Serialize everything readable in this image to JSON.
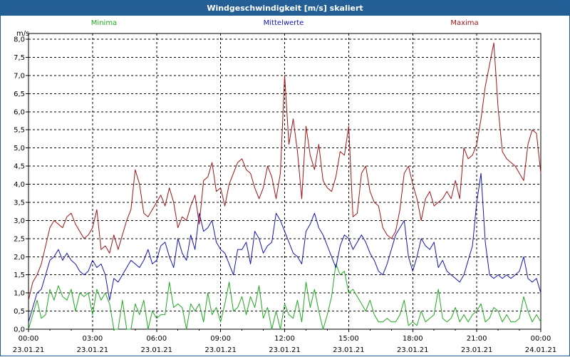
{
  "window": {
    "title": "Windgeschwindigkeit [m/s] skaliert"
  },
  "colors": {
    "min": "#1fa91f",
    "mean": "#1414b4",
    "max": "#a01414",
    "title_bar": "#235f94"
  },
  "chart_data": {
    "type": "line",
    "title": "Windgeschwindigkeit [m/s] skaliert",
    "ylabel": "m/s",
    "ylim": [
      0,
      8
    ],
    "yticks": [
      "0,0",
      "0,5",
      "1,0",
      "1,5",
      "2,0",
      "2,5",
      "3,0",
      "3,5",
      "4,0",
      "4,5",
      "5,0",
      "5,5",
      "6,0",
      "6,5",
      "7,0",
      "7,5",
      "8,0"
    ],
    "xlim": [
      "23.01.21 00:00",
      "24.01.21 00:00"
    ],
    "xticks": [
      {
        "time": "00:00",
        "date": "23.01.21"
      },
      {
        "time": "03:00",
        "date": "23.01.21"
      },
      {
        "time": "06:00",
        "date": "23.01.21"
      },
      {
        "time": "09:00",
        "date": "23.01.21"
      },
      {
        "time": "12:00",
        "date": "23.01.21"
      },
      {
        "time": "15:00",
        "date": "23.01.21"
      },
      {
        "time": "18:00",
        "date": "23.01.21"
      },
      {
        "time": "21:00",
        "date": "23.01.21"
      },
      {
        "time": "00:00",
        "date": "24.01.21"
      }
    ],
    "grid": true,
    "legend_position": "top",
    "x_unit": "hours",
    "series": [
      {
        "name": "Minima",
        "color": "#1fa91f",
        "x": [
          0,
          0.2,
          0.4,
          0.6,
          0.8,
          1.0,
          1.2,
          1.4,
          1.6,
          1.8,
          2.0,
          2.2,
          2.4,
          2.6,
          2.8,
          3.0,
          3.2,
          3.4,
          3.6,
          3.8,
          4.0,
          4.2,
          4.4,
          4.6,
          4.8,
          5.0,
          5.2,
          5.4,
          5.6,
          5.8,
          6.0,
          6.2,
          6.4,
          6.6,
          6.8,
          7.0,
          7.2,
          7.4,
          7.6,
          7.8,
          8.0,
          8.2,
          8.4,
          8.6,
          8.8,
          9.0,
          9.2,
          9.4,
          9.6,
          9.8,
          10.0,
          10.2,
          10.4,
          10.6,
          10.8,
          11.0,
          11.2,
          11.4,
          11.6,
          11.8,
          12.0,
          12.2,
          12.4,
          12.6,
          12.8,
          13.0,
          13.2,
          13.4,
          13.6,
          13.8,
          14.0,
          14.2,
          14.4,
          14.6,
          14.8,
          15.0,
          15.2,
          15.4,
          15.6,
          15.8,
          16.0,
          16.2,
          16.4,
          16.6,
          16.8,
          17.0,
          17.2,
          17.4,
          17.6,
          17.8,
          18.0,
          18.2,
          18.4,
          18.6,
          18.8,
          19.0,
          19.2,
          19.4,
          19.6,
          19.8,
          20.0,
          20.2,
          20.4,
          20.6,
          20.8,
          21.0,
          21.2,
          21.4,
          21.6,
          21.8,
          22.0,
          22.2,
          22.4,
          22.6,
          22.8,
          23.0,
          23.2,
          23.4,
          23.6,
          23.8,
          24.0
        ],
        "y": [
          0.0,
          0.4,
          0.8,
          0.3,
          0.4,
          1.1,
          0.8,
          1.2,
          0.9,
          0.8,
          1.1,
          0.5,
          1.0,
          0.9,
          1.0,
          0.4,
          1.1,
          0.8,
          1.0,
          0.7,
          0.0,
          0.0,
          0.8,
          0.0,
          0.0,
          0.7,
          0.4,
          0.8,
          0.0,
          0.5,
          0.3,
          0.4,
          0.4,
          1.3,
          0.6,
          0.7,
          0.6,
          0.0,
          0.7,
          0.5,
          0.7,
          0.2,
          1.0,
          0.4,
          0.6,
          0.2,
          0.7,
          1.3,
          0.5,
          0.6,
          0.9,
          0.4,
          0.9,
          0.6,
          1.2,
          0.3,
          0.6,
          0.0,
          0.5,
          0.0,
          0.7,
          0.4,
          0.3,
          0.8,
          0.2,
          1.3,
          0.6,
          1.1,
          0.5,
          0.0,
          0.4,
          0.9,
          1.8,
          1.5,
          1.6,
          1.0,
          1.1,
          0.9,
          0.7,
          0.5,
          0.8,
          0.4,
          0.2,
          0.2,
          0.3,
          0.2,
          0.2,
          0.4,
          0.8,
          0.1,
          0.2,
          0.1,
          0.5,
          0.2,
          0.3,
          0.4,
          1.1,
          0.3,
          0.2,
          0.3,
          0.6,
          0.2,
          0.4,
          0.2,
          0.4,
          0.5,
          0.7,
          0.2,
          0.3,
          0.6,
          0.5,
          0.2,
          0.4,
          0.2,
          0.2,
          0.3,
          0.9,
          0.5,
          0.2,
          0.4,
          0.2
        ],
        "x_hours": true
      },
      {
        "name": "Mittelwerte",
        "color": "#1414b4",
        "x": [
          0,
          0.2,
          0.4,
          0.6,
          0.8,
          1.0,
          1.2,
          1.4,
          1.6,
          1.8,
          2.0,
          2.2,
          2.4,
          2.6,
          2.8,
          3.0,
          3.2,
          3.4,
          3.6,
          3.8,
          4.0,
          4.2,
          4.4,
          4.6,
          4.8,
          5.0,
          5.2,
          5.4,
          5.6,
          5.8,
          6.0,
          6.2,
          6.4,
          6.6,
          6.8,
          7.0,
          7.2,
          7.4,
          7.6,
          7.8,
          8.0,
          8.2,
          8.4,
          8.6,
          8.8,
          9.0,
          9.2,
          9.4,
          9.6,
          9.8,
          10.0,
          10.2,
          10.4,
          10.6,
          10.8,
          11.0,
          11.2,
          11.4,
          11.6,
          11.8,
          12.0,
          12.2,
          12.4,
          12.6,
          12.8,
          13.0,
          13.2,
          13.4,
          13.6,
          13.8,
          14.0,
          14.2,
          14.4,
          14.6,
          14.8,
          15.0,
          15.2,
          15.4,
          15.6,
          15.8,
          16.0,
          16.2,
          16.4,
          16.6,
          16.8,
          17.0,
          17.2,
          17.4,
          17.6,
          17.8,
          18.0,
          18.2,
          18.4,
          18.6,
          18.8,
          19.0,
          19.2,
          19.4,
          19.6,
          19.8,
          20.0,
          20.2,
          20.4,
          20.6,
          20.8,
          21.0,
          21.2,
          21.4,
          21.6,
          21.8,
          22.0,
          22.2,
          22.4,
          22.6,
          22.8,
          23.0,
          23.2,
          23.4,
          23.6,
          23.8,
          24.0
        ],
        "y": [
          0.2,
          0.6,
          1.0,
          1.1,
          1.5,
          1.9,
          2.0,
          2.2,
          1.9,
          2.1,
          1.9,
          1.8,
          1.6,
          1.5,
          1.6,
          1.9,
          1.7,
          1.8,
          1.5,
          0.8,
          1.4,
          1.3,
          1.5,
          1.7,
          1.9,
          1.8,
          1.7,
          1.9,
          2.2,
          1.8,
          1.9,
          2.3,
          2.4,
          2.0,
          1.7,
          2.5,
          2.1,
          1.9,
          2.6,
          2.2,
          3.2,
          2.7,
          2.8,
          3.0,
          2.4,
          2.2,
          2.1,
          1.8,
          1.5,
          2.2,
          2.2,
          2.4,
          1.8,
          2.7,
          2.5,
          2.1,
          2.3,
          2.4,
          3.2,
          3.0,
          2.7,
          2.4,
          2.1,
          2.0,
          1.8,
          2.7,
          2.9,
          3.2,
          2.8,
          2.6,
          2.3,
          2.0,
          1.7,
          2.3,
          2.6,
          2.5,
          2.2,
          2.4,
          2.6,
          2.4,
          2.1,
          1.9,
          1.6,
          1.5,
          1.8,
          2.2,
          2.6,
          2.8,
          3.0,
          2.0,
          1.6,
          2.0,
          2.5,
          2.3,
          2.2,
          2.4,
          1.7,
          1.9,
          1.6,
          1.5,
          1.4,
          1.3,
          1.5,
          1.9,
          2.3,
          3.5,
          4.3,
          2.4,
          1.5,
          1.4,
          1.5,
          1.4,
          1.5,
          1.4,
          1.5,
          1.6,
          2.0,
          1.4,
          1.3,
          1.4,
          1.0
        ],
        "x_hours": true
      },
      {
        "name": "Maxima",
        "color": "#a01414",
        "x": [
          0,
          0.2,
          0.4,
          0.6,
          0.8,
          1.0,
          1.2,
          1.4,
          1.6,
          1.8,
          2.0,
          2.2,
          2.4,
          2.6,
          2.8,
          3.0,
          3.2,
          3.4,
          3.6,
          3.8,
          4.0,
          4.2,
          4.4,
          4.6,
          4.8,
          5.0,
          5.2,
          5.4,
          5.6,
          5.8,
          6.0,
          6.2,
          6.4,
          6.6,
          6.8,
          7.0,
          7.2,
          7.4,
          7.6,
          7.8,
          8.0,
          8.2,
          8.4,
          8.6,
          8.8,
          9.0,
          9.2,
          9.4,
          9.6,
          9.8,
          10.0,
          10.2,
          10.4,
          10.6,
          10.8,
          11.0,
          11.2,
          11.4,
          11.6,
          11.8,
          12.0,
          12.2,
          12.4,
          12.6,
          12.8,
          13.0,
          13.2,
          13.4,
          13.6,
          13.8,
          14.0,
          14.2,
          14.4,
          14.6,
          14.8,
          15.0,
          15.2,
          15.4,
          15.6,
          15.8,
          16.0,
          16.2,
          16.4,
          16.6,
          16.8,
          17.0,
          17.2,
          17.4,
          17.6,
          17.8,
          18.0,
          18.2,
          18.4,
          18.6,
          18.8,
          19.0,
          19.2,
          19.4,
          19.6,
          19.8,
          20.0,
          20.2,
          20.4,
          20.6,
          20.8,
          21.0,
          21.2,
          21.4,
          21.6,
          21.8,
          22.0,
          22.2,
          22.4,
          22.6,
          22.8,
          23.0,
          23.2,
          23.4,
          23.6,
          23.8,
          24.0
        ],
        "y": [
          0.8,
          1.3,
          1.5,
          1.8,
          2.3,
          2.8,
          3.0,
          2.9,
          2.8,
          3.1,
          3.2,
          2.9,
          2.7,
          2.5,
          2.6,
          2.8,
          3.3,
          2.2,
          2.3,
          2.1,
          2.6,
          2.2,
          2.6,
          3.0,
          3.3,
          4.4,
          4.0,
          3.2,
          3.1,
          3.3,
          3.5,
          3.7,
          3.4,
          3.9,
          3.5,
          2.8,
          3.1,
          3.0,
          3.4,
          3.7,
          2.9,
          4.1,
          4.2,
          4.6,
          3.8,
          3.9,
          3.4,
          4.0,
          4.3,
          4.6,
          4.7,
          4.4,
          4.3,
          3.9,
          3.6,
          3.9,
          4.5,
          4.2,
          3.6,
          4.3,
          7.0,
          5.1,
          5.8,
          4.9,
          3.6,
          5.6,
          4.8,
          4.4,
          5.1,
          4.1,
          3.9,
          3.8,
          4.2,
          4.9,
          4.8,
          5.6,
          3.1,
          3.2,
          4.3,
          4.5,
          3.8,
          3.5,
          3.4,
          2.8,
          2.6,
          2.5,
          2.7,
          3.3,
          4.3,
          4.5,
          4.0,
          3.6,
          3.0,
          3.6,
          3.8,
          3.4,
          3.5,
          3.6,
          3.8,
          3.6,
          4.1,
          3.6,
          5.0,
          4.7,
          4.8,
          5.1,
          5.8,
          6.7,
          7.3,
          7.9,
          6.1,
          4.9,
          4.7,
          4.6,
          4.5,
          4.3,
          4.1,
          5.1,
          5.5,
          5.4,
          4.3
        ],
        "x_hours": true
      }
    ]
  }
}
